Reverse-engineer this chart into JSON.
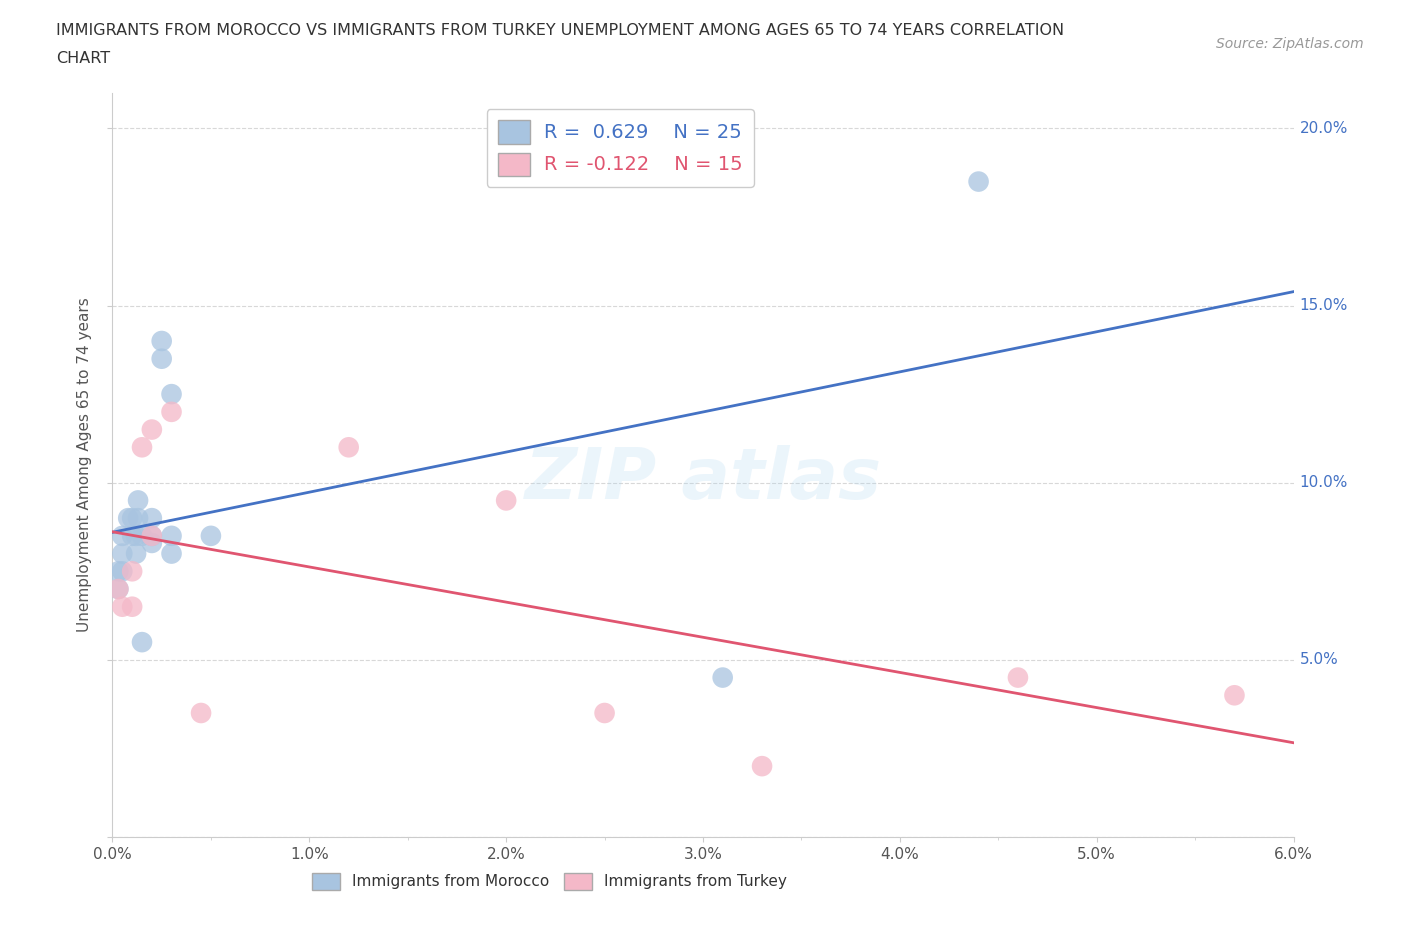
{
  "title_line1": "IMMIGRANTS FROM MOROCCO VS IMMIGRANTS FROM TURKEY UNEMPLOYMENT AMONG AGES 65 TO 74 YEARS CORRELATION",
  "title_line2": "CHART",
  "source": "Source: ZipAtlas.com",
  "ylabel": "Unemployment Among Ages 65 to 74 years",
  "xlim": [
    0.0,
    0.06
  ],
  "ylim": [
    0.0,
    0.21
  ],
  "xticks_major": [
    0.0,
    0.01,
    0.02,
    0.03,
    0.04,
    0.05,
    0.06
  ],
  "xtick_labels": [
    "0.0%",
    "",
    "1.0%",
    "",
    "2.0%",
    "",
    "3.0%",
    "",
    "4.0%",
    "",
    "5.0%",
    "",
    "6.0%"
  ],
  "yticks": [
    0.0,
    0.05,
    0.1,
    0.15,
    0.2
  ],
  "ytick_labels_right": [
    "",
    "5.0%",
    "10.0%",
    "15.0%",
    "20.0%"
  ],
  "morocco_color": "#a8c4e0",
  "turkey_color": "#f4b8c8",
  "morocco_line_color": "#4472c4",
  "turkey_line_color": "#e05570",
  "morocco_R": 0.629,
  "morocco_N": 25,
  "turkey_R": -0.122,
  "turkey_N": 15,
  "background_color": "#ffffff",
  "grid_color": "#d8d8d8",
  "morocco_x": [
    0.0003,
    0.0003,
    0.0005,
    0.0005,
    0.0005,
    0.0008,
    0.001,
    0.001,
    0.0012,
    0.0012,
    0.0013,
    0.0013,
    0.0015,
    0.0015,
    0.002,
    0.002,
    0.002,
    0.0025,
    0.0025,
    0.003,
    0.003,
    0.003,
    0.005,
    0.031,
    0.044
  ],
  "morocco_y": [
    0.07,
    0.075,
    0.075,
    0.08,
    0.085,
    0.09,
    0.085,
    0.09,
    0.08,
    0.085,
    0.09,
    0.095,
    0.055,
    0.085,
    0.083,
    0.085,
    0.09,
    0.14,
    0.135,
    0.125,
    0.085,
    0.08,
    0.085,
    0.045,
    0.185
  ],
  "turkey_x": [
    0.0003,
    0.0005,
    0.001,
    0.001,
    0.0015,
    0.002,
    0.002,
    0.003,
    0.0045,
    0.012,
    0.02,
    0.025,
    0.033,
    0.046,
    0.057
  ],
  "turkey_y": [
    0.07,
    0.065,
    0.065,
    0.075,
    0.11,
    0.085,
    0.115,
    0.12,
    0.035,
    0.11,
    0.095,
    0.035,
    0.02,
    0.045,
    0.04
  ],
  "watermark_text": "ZIPatlas",
  "legend_label_morocco": "Immigrants from Morocco",
  "legend_label_turkey": "Immigrants from Turkey"
}
